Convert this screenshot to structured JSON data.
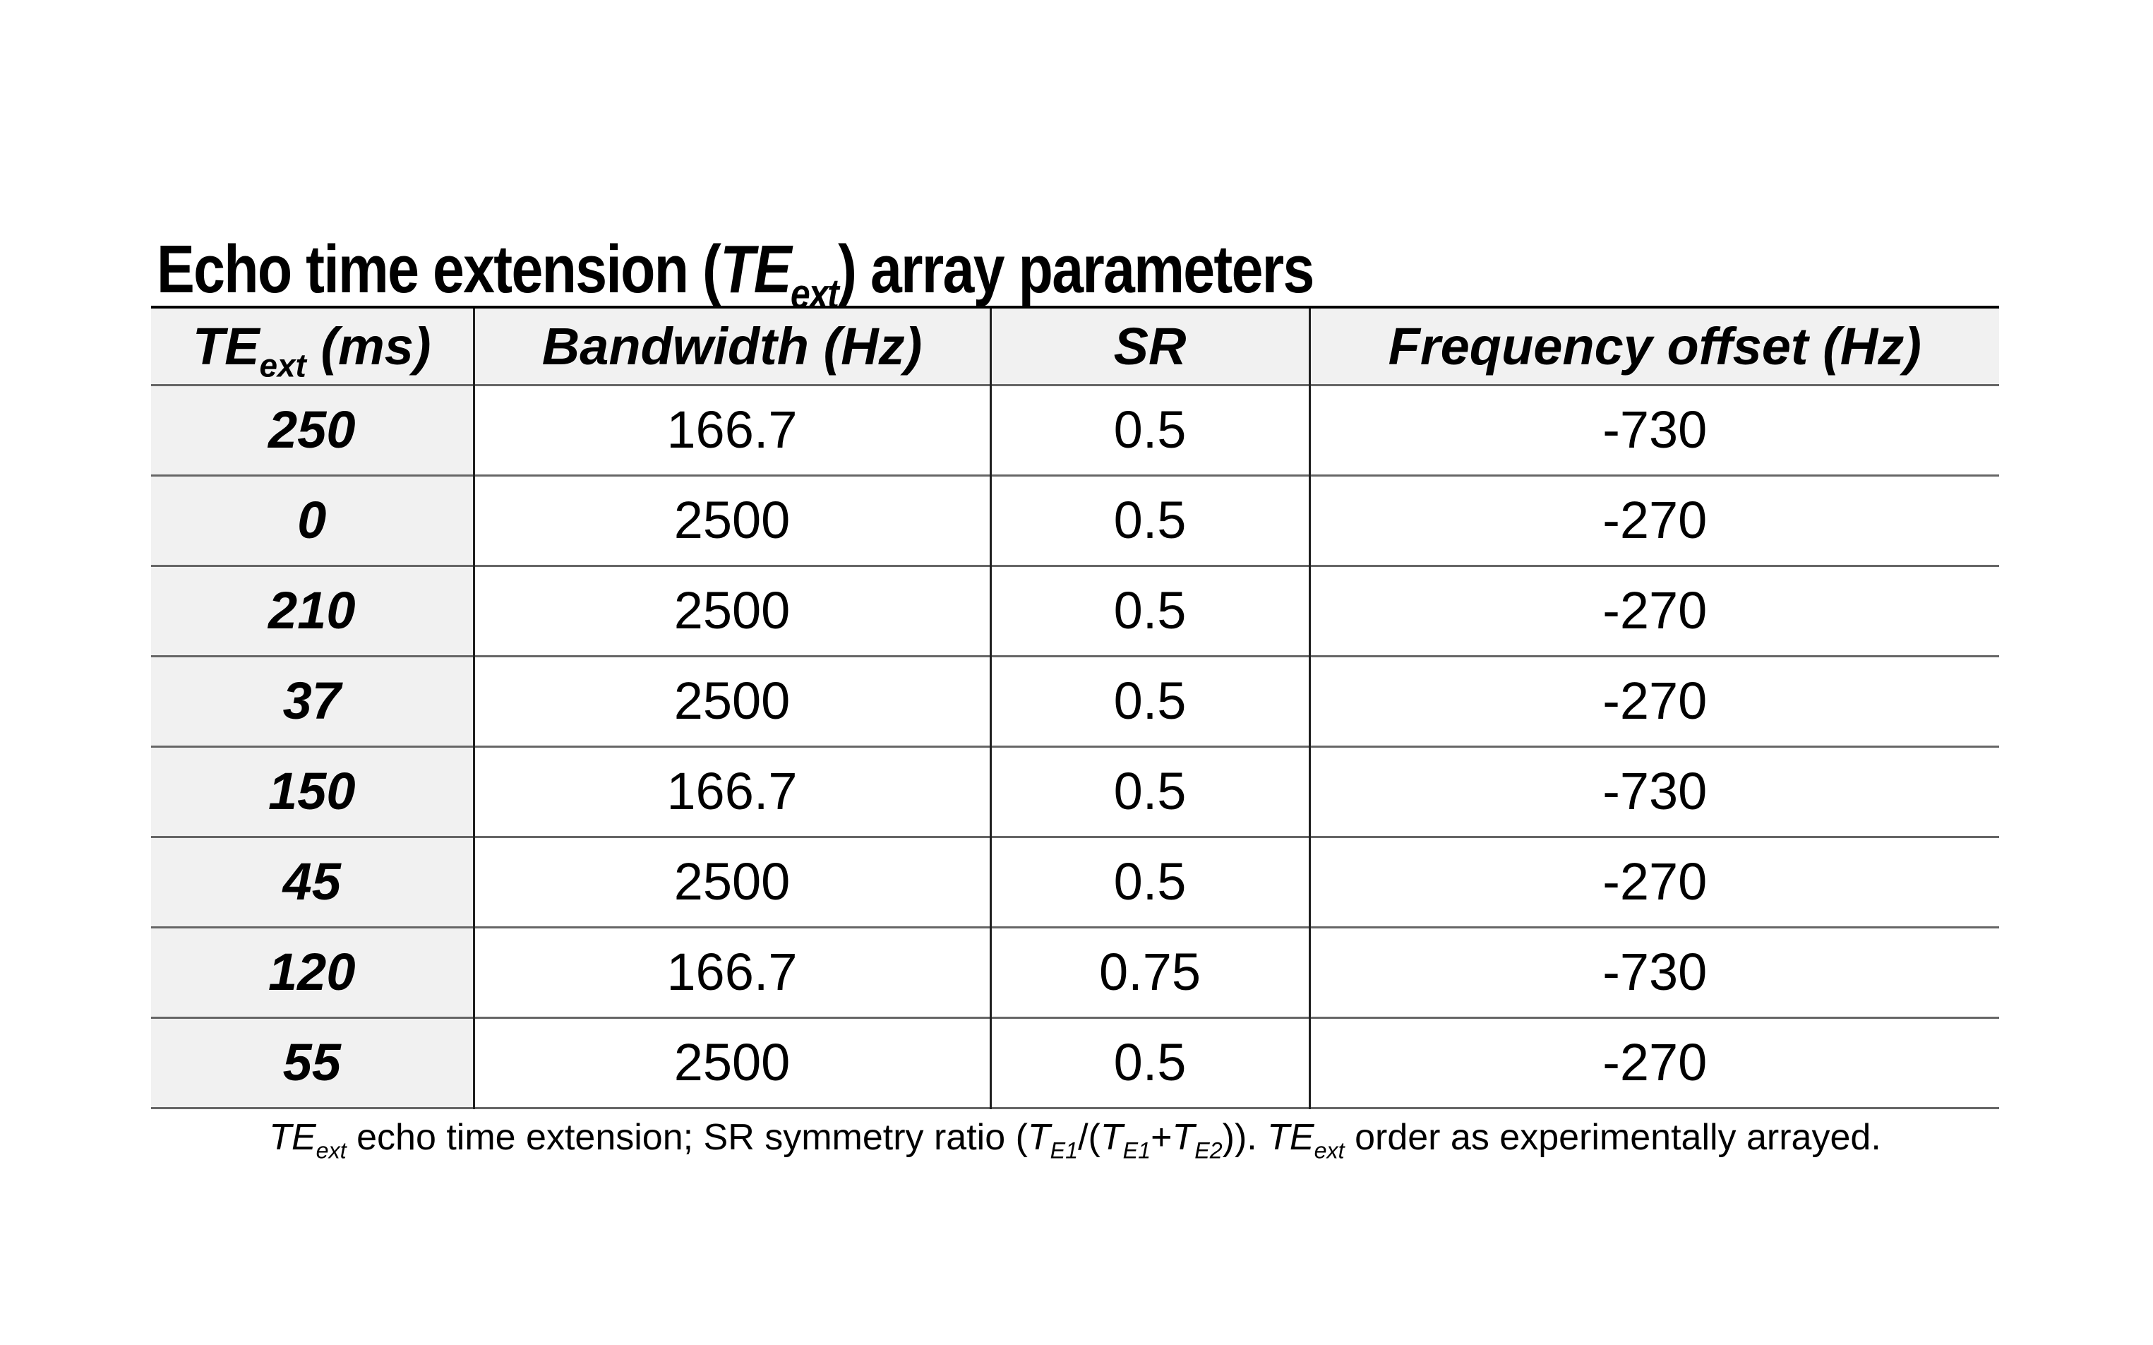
{
  "colors": {
    "text": "#000000",
    "header_background": "#f1f1f1",
    "row_label_background": "#f1f1f1",
    "grid_horizontal": "#666666",
    "grid_vertical": "#1f1f1f",
    "table_top_border": "#000000"
  },
  "title": {
    "segments": [
      {
        "t": "Echo time extension ("
      },
      {
        "t": "TE",
        "i": true
      },
      {
        "t": "ext",
        "i": true,
        "sub": true
      },
      {
        "t": ") array parameters"
      }
    ]
  },
  "table": {
    "header": [
      {
        "segments": [
          {
            "t": "TE",
            "i": true
          },
          {
            "t": "ext",
            "i": true,
            "sub": true
          },
          {
            "t": " (ms)",
            "i": true
          }
        ]
      },
      {
        "label": "Bandwidth (Hz)"
      },
      {
        "label": "SR"
      },
      {
        "label": "Frequency offset (Hz)"
      }
    ],
    "rows": [
      {
        "cells": [
          "250",
          "166.7",
          "0.5",
          "-730"
        ]
      },
      {
        "cells": [
          "0",
          "2500",
          "0.5",
          "-270"
        ]
      },
      {
        "cells": [
          "210",
          "2500",
          "0.5",
          "-270"
        ]
      },
      {
        "cells": [
          "37",
          "2500",
          "0.5",
          "-270"
        ]
      },
      {
        "cells": [
          "150",
          "166.7",
          "0.5",
          "-730"
        ]
      },
      {
        "cells": [
          "45",
          "2500",
          "0.5",
          "-270"
        ]
      },
      {
        "cells": [
          "120",
          "166.7",
          "0.75",
          "-730"
        ]
      },
      {
        "cells": [
          "55",
          "2500",
          "0.5",
          "-270"
        ]
      }
    ]
  },
  "footnote": {
    "segments": [
      {
        "t": "TE",
        "i": true
      },
      {
        "t": "ext",
        "i": true,
        "sub": true
      },
      {
        "t": " echo time extension; SR symmetry ratio ("
      },
      {
        "t": "T",
        "i": true
      },
      {
        "t": "E1",
        "i": true,
        "sub": true
      },
      {
        "t": "/("
      },
      {
        "t": "T",
        "i": true
      },
      {
        "t": "E1",
        "i": true,
        "sub": true
      },
      {
        "t": "+"
      },
      {
        "t": "T",
        "i": true
      },
      {
        "t": "E2",
        "i": true,
        "sub": true
      },
      {
        "t": ")). "
      },
      {
        "t": "TE",
        "i": true
      },
      {
        "t": "ext",
        "i": true,
        "sub": true
      },
      {
        "t": " order as experimentally arrayed."
      }
    ]
  }
}
